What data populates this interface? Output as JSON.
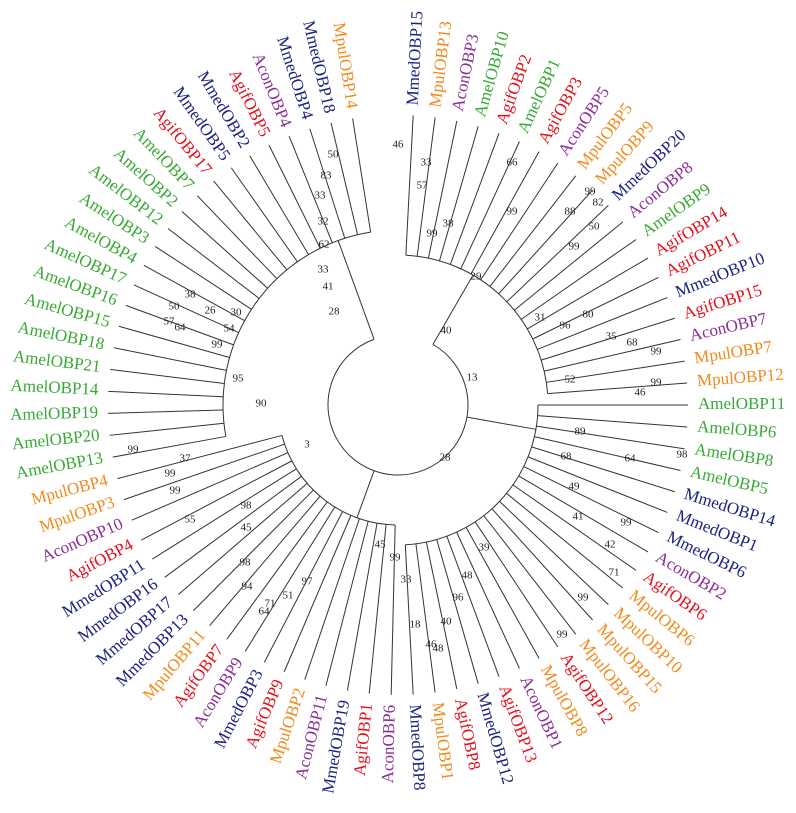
{
  "leaves": [
    {
      "label": "MmedOBP15",
      "color": "#1b237f"
    },
    {
      "label": "MpulOBP13",
      "color": "#f08a1c"
    },
    {
      "label": "AconOBP3",
      "color": "#8a2f96"
    },
    {
      "label": "AmelOBP10",
      "color": "#38a935"
    },
    {
      "label": "AgifOBP2",
      "color": "#e3101c"
    },
    {
      "label": "AmelOBP1",
      "color": "#38a935"
    },
    {
      "label": "AgifOBP3",
      "color": "#e3101c"
    },
    {
      "label": "AconOBP5",
      "color": "#8a2f96"
    },
    {
      "label": "MpulOBP5",
      "color": "#f08a1c"
    },
    {
      "label": "MpulOBP9",
      "color": "#f08a1c"
    },
    {
      "label": "MmedOBP20",
      "color": "#1b237f"
    },
    {
      "label": "AconOBP8",
      "color": "#8a2f96"
    },
    {
      "label": "AmelOBP9",
      "color": "#38a935"
    },
    {
      "label": "AgifOBP14",
      "color": "#e3101c"
    },
    {
      "label": "AgifOBP11",
      "color": "#e3101c"
    },
    {
      "label": "MmedOBP10",
      "color": "#1b237f"
    },
    {
      "label": "AgifOBP15",
      "color": "#e3101c"
    },
    {
      "label": "AconOBP7",
      "color": "#8a2f96"
    },
    {
      "label": "MpulOBP7",
      "color": "#f08a1c"
    },
    {
      "label": "MpulOBP12",
      "color": "#f08a1c"
    },
    {
      "label": "AmelOBP11",
      "color": "#38a935"
    },
    {
      "label": "AmelOBP6",
      "color": "#38a935"
    },
    {
      "label": "AmelOBP8",
      "color": "#38a935"
    },
    {
      "label": "AmelOBP5",
      "color": "#38a935"
    },
    {
      "label": "MmedOBP14",
      "color": "#1b237f"
    },
    {
      "label": "MmedOBP1",
      "color": "#1b237f"
    },
    {
      "label": "MmedOBP6",
      "color": "#1b237f"
    },
    {
      "label": "AconOBP2",
      "color": "#8a2f96"
    },
    {
      "label": "AgifOBP6",
      "color": "#e3101c"
    },
    {
      "label": "MpulOBP6",
      "color": "#f08a1c"
    },
    {
      "label": "MpulOBP10",
      "color": "#f08a1c"
    },
    {
      "label": "MpulOBP15",
      "color": "#f08a1c"
    },
    {
      "label": "MpulOBP16",
      "color": "#f08a1c"
    },
    {
      "label": "AgifOBP12",
      "color": "#e3101c"
    },
    {
      "label": "MpulOBP8",
      "color": "#f08a1c"
    },
    {
      "label": "AconOBP1",
      "color": "#8a2f96"
    },
    {
      "label": "AgifOBP13",
      "color": "#e3101c"
    },
    {
      "label": "MmedOBP12",
      "color": "#1b237f"
    },
    {
      "label": "AgifOBP8",
      "color": "#e3101c"
    },
    {
      "label": "MpulOBP1",
      "color": "#f08a1c"
    },
    {
      "label": "MmedOBP8",
      "color": "#1b237f"
    },
    {
      "label": "AconOBP6",
      "color": "#8a2f96"
    },
    {
      "label": "AgifOBP1",
      "color": "#e3101c"
    },
    {
      "label": "MmedOBP19",
      "color": "#1b237f"
    },
    {
      "label": "AconOBP11",
      "color": "#8a2f96"
    },
    {
      "label": "MpulOBP2",
      "color": "#f08a1c"
    },
    {
      "label": "AgifOBP9",
      "color": "#e3101c"
    },
    {
      "label": "MmedOBP3",
      "color": "#1b237f"
    },
    {
      "label": "AconOBP9",
      "color": "#8a2f96"
    },
    {
      "label": "AgifOBP7",
      "color": "#e3101c"
    },
    {
      "label": "MpulOBP11",
      "color": "#f08a1c"
    },
    {
      "label": "MmedOBP13",
      "color": "#1b237f"
    },
    {
      "label": "MmedOBP17",
      "color": "#1b237f"
    },
    {
      "label": "MmedOBP16",
      "color": "#1b237f"
    },
    {
      "label": "MmedOBP11",
      "color": "#1b237f"
    },
    {
      "label": "AgifOBP4",
      "color": "#e3101c"
    },
    {
      "label": "AconOBP10",
      "color": "#8a2f96"
    },
    {
      "label": "MpulOBP3",
      "color": "#f08a1c"
    },
    {
      "label": "MpulOBP4",
      "color": "#f08a1c"
    },
    {
      "label": "AmelOBP13",
      "color": "#38a935"
    },
    {
      "label": "AmelOBP20",
      "color": "#38a935"
    },
    {
      "label": "AmelOBP19",
      "color": "#38a935"
    },
    {
      "label": "AmelOBP14",
      "color": "#38a935"
    },
    {
      "label": "AmelOBP21",
      "color": "#38a935"
    },
    {
      "label": "AmelOBP18",
      "color": "#38a935"
    },
    {
      "label": "AmelOBP15",
      "color": "#38a935"
    },
    {
      "label": "AmelOBP16",
      "color": "#38a935"
    },
    {
      "label": "AmelOBP17",
      "color": "#38a935"
    },
    {
      "label": "AmelOBP4",
      "color": "#38a935"
    },
    {
      "label": "AmelOBP3",
      "color": "#38a935"
    },
    {
      "label": "AmelOBP12",
      "color": "#38a935"
    },
    {
      "label": "AmelOBP2",
      "color": "#38a935"
    },
    {
      "label": "AmelOBP7",
      "color": "#38a935"
    },
    {
      "label": "AgifOBP17",
      "color": "#e3101c"
    },
    {
      "label": "MmedOBP5",
      "color": "#1b237f"
    },
    {
      "label": "MmedOBP2",
      "color": "#1b237f"
    },
    {
      "label": "AgifOBP5",
      "color": "#e3101c"
    },
    {
      "label": "AconOBP4",
      "color": "#8a2f96"
    },
    {
      "label": "MmedOBP4",
      "color": "#1b237f"
    },
    {
      "label": "MmedOBP18",
      "color": "#1b237f"
    },
    {
      "label": "MpulOBP14",
      "color": "#f08a1c"
    }
  ],
  "bootstrap": [
    46,
    33,
    57,
    99,
    38,
    66,
    82,
    99,
    88,
    99,
    50,
    99,
    29,
    31,
    96,
    80,
    35,
    68,
    99,
    40,
    13,
    52,
    99,
    46,
    89,
    68,
    98,
    64,
    49,
    41,
    99,
    42,
    71,
    99,
    99,
    39,
    48,
    96,
    40,
    46,
    48,
    18,
    33,
    99,
    45,
    97,
    51,
    71,
    64,
    94,
    98,
    45,
    98,
    55,
    99,
    99,
    37,
    99,
    3,
    90,
    95,
    99,
    54,
    50,
    57,
    64,
    38,
    26,
    30,
    28,
    41,
    33,
    62,
    32,
    33,
    83,
    50,
    28
  ]
}
